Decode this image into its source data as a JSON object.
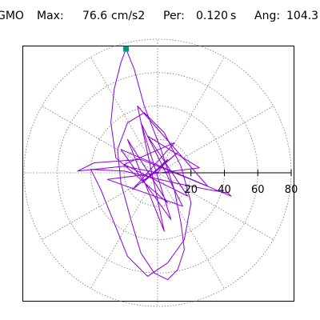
{
  "chart_data": {
    "type": "polar-orbit",
    "label": "GMO",
    "max_label": "Max:",
    "max": 76.6,
    "max_unit": "cm/s2",
    "period_label": "Per:",
    "period": "0.120",
    "period_unit": "s",
    "angle_label": "Ang:",
    "angle": 104.3,
    "rlim": [
      0,
      80
    ],
    "rticks": [
      20,
      40,
      60,
      80
    ],
    "grid": true,
    "color": "#8b00d8",
    "marker_color": "#00997a",
    "x": [
      0,
      6,
      -9,
      12,
      -15,
      10,
      -20,
      18,
      -6,
      25,
      -30,
      15,
      -10,
      8,
      -22,
      30,
      -12,
      4,
      -18,
      6,
      -25,
      -28,
      -26,
      -22,
      -18.9,
      -14,
      -8,
      2,
      10,
      14,
      16,
      12,
      6,
      -2,
      -10,
      -16,
      -22,
      -24,
      -18,
      -8,
      4,
      14,
      20,
      16,
      6,
      -6,
      -18,
      -34,
      -40,
      -20,
      10,
      30,
      42,
      44,
      20,
      -10,
      -38,
      -48,
      -20,
      0
    ],
    "y": [
      0,
      8,
      -6,
      12,
      -10,
      18,
      5,
      -14,
      22,
      3,
      -4,
      -20,
      30,
      -28,
      14,
      -8,
      40,
      -35,
      20,
      -18,
      9,
      30,
      50,
      66,
      74.2,
      62,
      40,
      14,
      -10,
      -30,
      -46,
      -58,
      -64,
      -60,
      -48,
      -28,
      -6,
      14,
      30,
      36,
      24,
      4,
      -18,
      -40,
      -54,
      -62,
      -50,
      -10,
      2,
      1,
      -6,
      -10,
      -12,
      -14,
      -4,
      8,
      6,
      1,
      4,
      0
    ]
  }
}
